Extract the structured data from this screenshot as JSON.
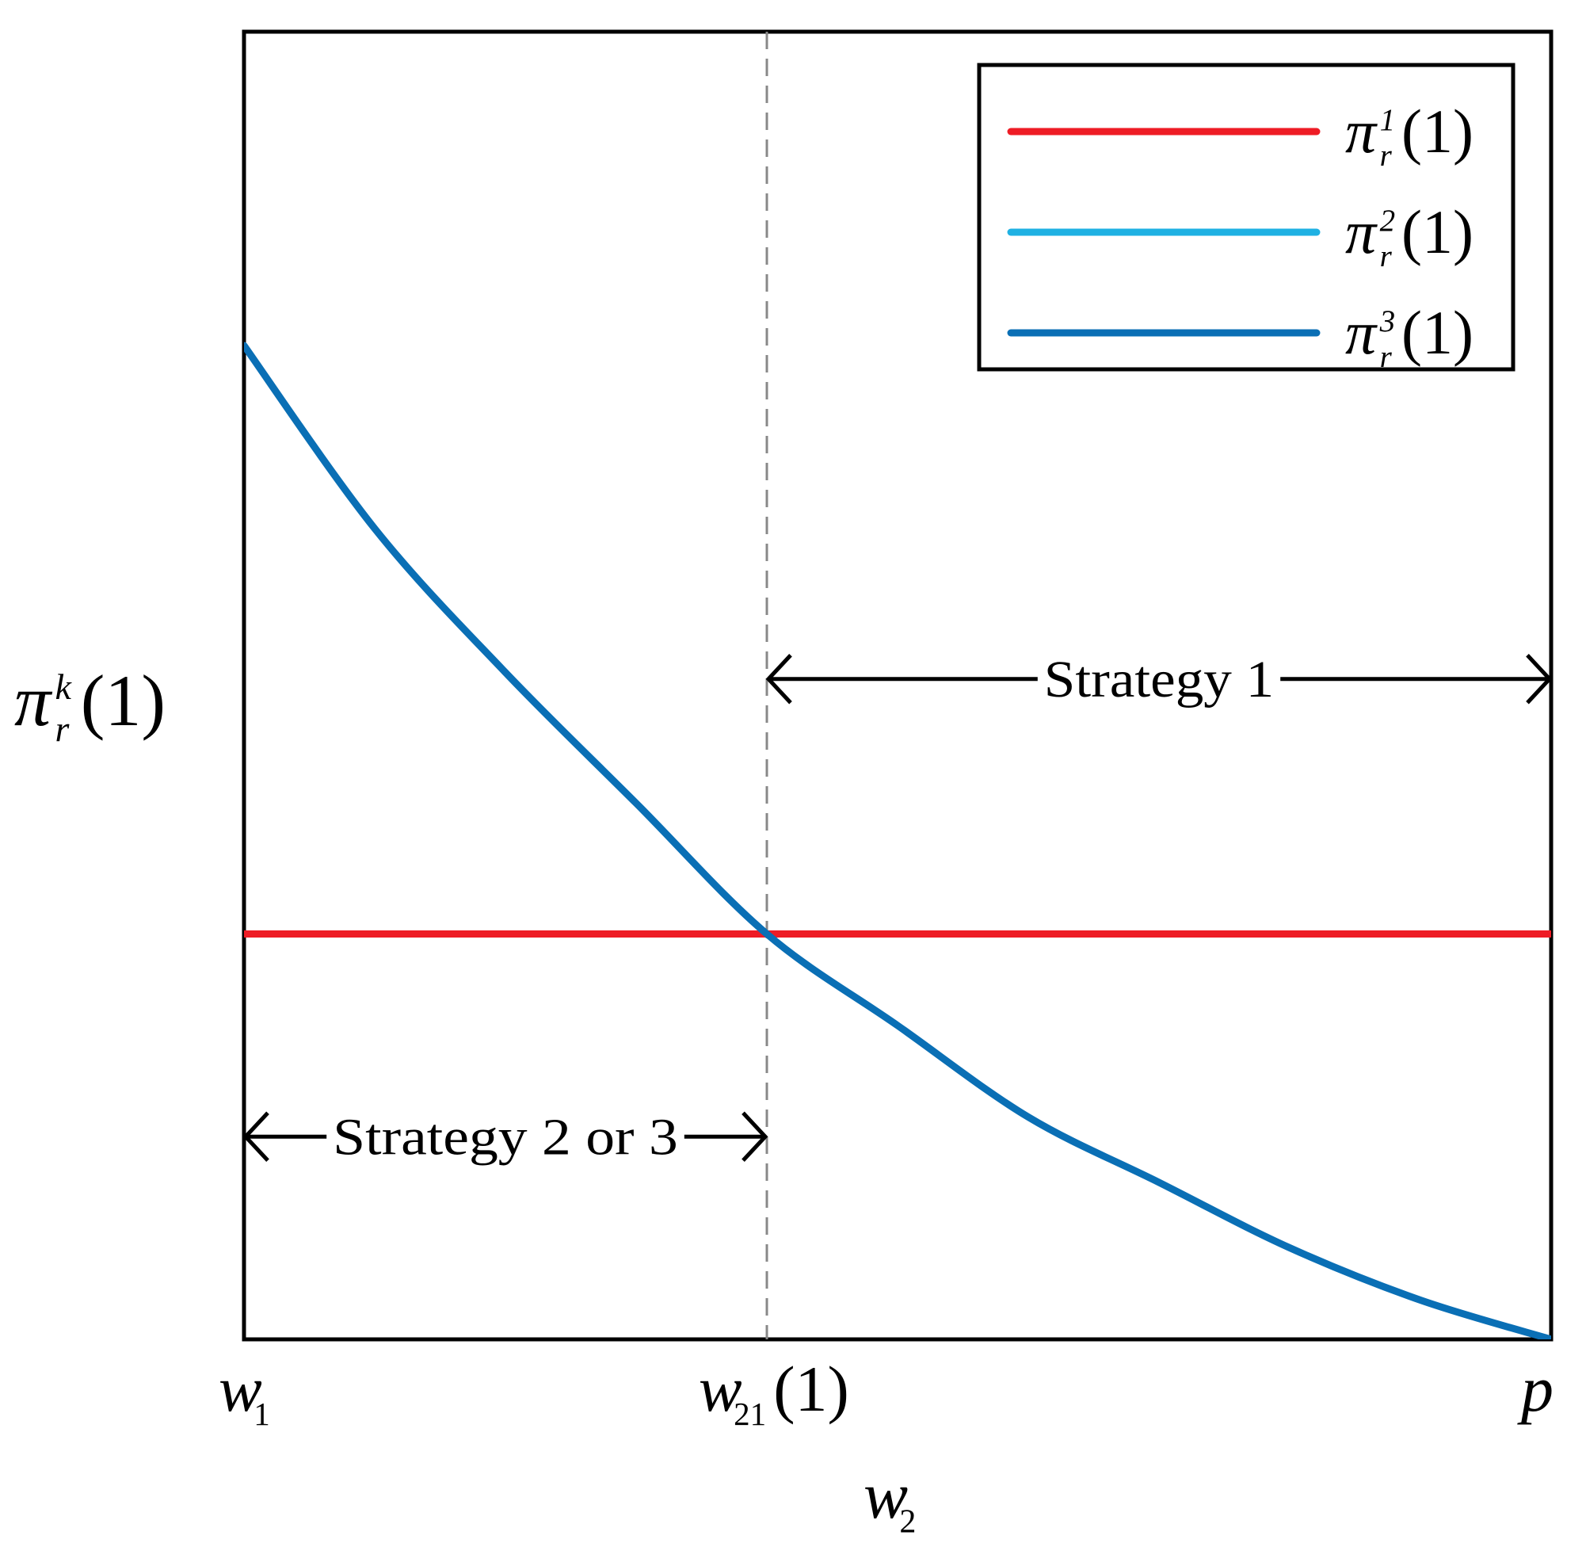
{
  "chart_data": {
    "type": "line",
    "title": "",
    "xlabel": {
      "base": "w",
      "sub": "2"
    },
    "ylabel": {
      "base": "π",
      "sup": "k",
      "sub": "r",
      "arg": "(1)"
    },
    "xlim": [
      0,
      1
    ],
    "ylim": [
      0,
      1
    ],
    "grid": false,
    "legend_position": "top-right",
    "x_ticks": [
      {
        "x": 0,
        "base": "w",
        "sub": "1",
        "arg": ""
      },
      {
        "x": 0.4,
        "base": "w",
        "sub": "21",
        "arg": "(1)"
      },
      {
        "x": 1,
        "base": "p",
        "sub": "",
        "arg": ""
      }
    ],
    "series": [
      {
        "name": {
          "base": "π",
          "sup": "1",
          "sub": "r",
          "arg": "(1)"
        },
        "color": "#ee1c25",
        "kind": "constant",
        "y": 0.31
      },
      {
        "name": {
          "base": "π",
          "sup": "2",
          "sub": "r",
          "arg": "(1)"
        },
        "color": "#1fb1e3",
        "kind": "none"
      },
      {
        "name": {
          "base": "π",
          "sup": "3",
          "sub": "r",
          "arg": "(1)"
        },
        "color": "#0a6fb5",
        "kind": "curve",
        "x": [
          0,
          0.1,
          0.2,
          0.3,
          0.4,
          0.5,
          0.6,
          0.7,
          0.8,
          0.9,
          1.0
        ],
        "y": [
          0.76,
          0.62,
          0.51,
          0.41,
          0.31,
          0.24,
          0.17,
          0.12,
          0.07,
          0.03,
          0.0
        ]
      }
    ],
    "vline": {
      "x": 0.4,
      "style": "dashed",
      "color": "#888888"
    },
    "annotations": [
      {
        "text": "Strategy 1",
        "x_start": 0.4,
        "x_end": 1.0,
        "y": 0.505
      },
      {
        "text": "Strategy 2 or 3",
        "x_start": 0.0,
        "x_end": 0.4,
        "y": 0.155
      }
    ]
  }
}
